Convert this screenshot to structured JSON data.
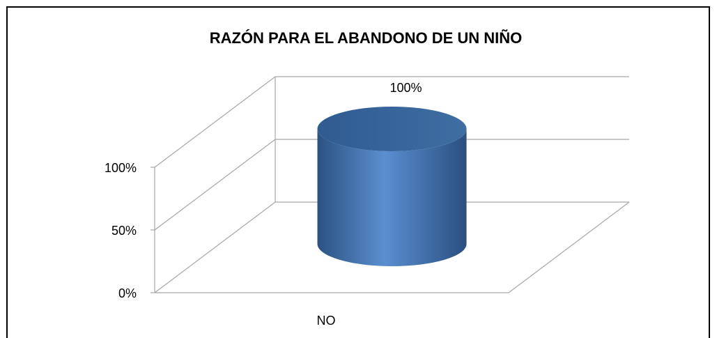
{
  "chart_data": {
    "type": "cylinder",
    "title": "RAZÓN PARA EL ABANDONO DE UN NIÑO",
    "categories": [
      "NO"
    ],
    "values": [
      100
    ],
    "value_labels": [
      "100%"
    ],
    "color": "#4f81bd",
    "ylim": [
      0,
      100
    ],
    "yticks": [
      {
        "value": 0,
        "label": "0%"
      },
      {
        "value": 50,
        "label": "50%"
      },
      {
        "value": 100,
        "label": "100%"
      }
    ],
    "grid": true
  }
}
